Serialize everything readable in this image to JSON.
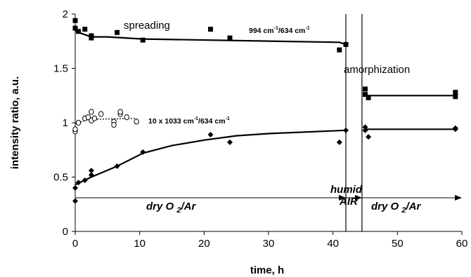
{
  "chart_data": {
    "type": "scatter",
    "xlabel": "time, h",
    "ylabel": "intensity ratio, a.u.",
    "xlim": [
      0,
      60
    ],
    "ylim": [
      0,
      2
    ],
    "xticks": [
      "0",
      "10",
      "20",
      "30",
      "40",
      "50",
      "60"
    ],
    "yticks": [
      "0",
      "0.5",
      "1",
      "1.5",
      "2"
    ],
    "grid": false,
    "series": [
      {
        "name": "994 cm-1/634 cm-1",
        "marker": "square",
        "color": "#000000",
        "points": [
          [
            0,
            1.94
          ],
          [
            0,
            1.87
          ],
          [
            0.5,
            1.84
          ],
          [
            1.5,
            1.86
          ],
          [
            2.5,
            1.8
          ],
          [
            2.5,
            1.78
          ],
          [
            6.5,
            1.83
          ],
          [
            10.5,
            1.76
          ],
          [
            21,
            1.86
          ],
          [
            24,
            1.78
          ],
          [
            41,
            1.67
          ],
          [
            42,
            1.72
          ],
          [
            45,
            1.31
          ],
          [
            45,
            1.26
          ],
          [
            45.5,
            1.23
          ],
          [
            59,
            1.28
          ],
          [
            59,
            1.24
          ]
        ],
        "fit_lines": [
          [
            [
              0,
              1.85
            ],
            [
              0.5,
              1.83
            ],
            [
              2.5,
              1.79
            ],
            [
              5,
              1.79
            ],
            [
              10.5,
              1.77
            ],
            [
              41,
              1.74
            ],
            [
              42,
              1.72
            ]
          ],
          [
            [
              45,
              1.25
            ],
            [
              59,
              1.25
            ]
          ]
        ]
      },
      {
        "name": "10 x 1033 cm-1/634 cm-1",
        "marker": "diamond",
        "color": "#000000",
        "points": [
          [
            0,
            0.28
          ],
          [
            0,
            0.4
          ],
          [
            0.5,
            0.45
          ],
          [
            1.5,
            0.47
          ],
          [
            2.5,
            0.52
          ],
          [
            2.5,
            0.56
          ],
          [
            6.5,
            0.6
          ],
          [
            10.5,
            0.73
          ],
          [
            21,
            0.89
          ],
          [
            24,
            0.82
          ],
          [
            41,
            0.82
          ],
          [
            42,
            0.93
          ],
          [
            45,
            0.96
          ],
          [
            45,
            0.93
          ],
          [
            45.5,
            0.87
          ],
          [
            59,
            0.95
          ],
          [
            59,
            0.94
          ]
        ],
        "fit_lines": [
          [
            [
              0,
              0.43
            ],
            [
              2.5,
              0.5
            ],
            [
              6.5,
              0.6
            ],
            [
              10.5,
              0.72
            ],
            [
              15,
              0.79
            ],
            [
              20,
              0.84
            ],
            [
              25,
              0.88
            ],
            [
              30,
              0.9
            ],
            [
              42,
              0.93
            ]
          ],
          [
            [
              45,
              0.94
            ],
            [
              59,
              0.94
            ]
          ]
        ]
      },
      {
        "name": "open circles",
        "marker": "circle-open",
        "color": "#000000",
        "points": [
          [
            0,
            0.92
          ],
          [
            0,
            0.94
          ],
          [
            0.5,
            1.0
          ],
          [
            1.5,
            1.04
          ],
          [
            2,
            1.05
          ],
          [
            2.5,
            1.1
          ],
          [
            2.5,
            1.02
          ],
          [
            3,
            1.04
          ],
          [
            4,
            1.08
          ],
          [
            6,
            1.01
          ],
          [
            6,
            0.98
          ],
          [
            7,
            1.08
          ],
          [
            7,
            1.1
          ],
          [
            8,
            1.05
          ],
          [
            9.5,
            1.01
          ]
        ],
        "fit_dotted": [
          [
            0,
            0.99
          ],
          [
            2,
            1.03
          ],
          [
            9.5,
            1.04
          ]
        ]
      }
    ],
    "vlines": [
      42,
      44.5
    ],
    "arrows": [
      {
        "from": 0,
        "to": 42,
        "y": 0.31
      },
      {
        "from": 42,
        "to": 44.5,
        "y": 0.31
      },
      {
        "from": 44.5,
        "to": 60,
        "y": 0.31
      }
    ],
    "annotations": {
      "spreading": "spreading",
      "ratio_994": "994 cm-1/634 cm-1",
      "amorphization": "amorphization",
      "ratio_1033": "10 x 1033 cm-1/634 cm-1",
      "dry_left": "dry O 2/Ar",
      "humid_1": "humid",
      "humid_2": "AIR",
      "dry_right": "dry O 2/Ar"
    }
  }
}
